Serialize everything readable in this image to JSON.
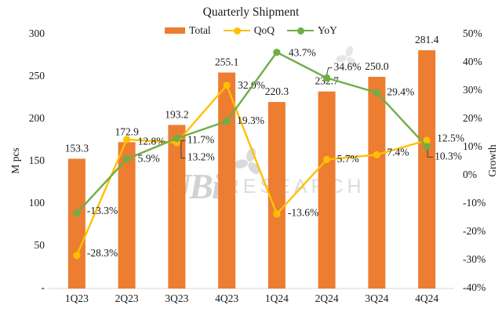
{
  "chart_data": {
    "type": "bar+line",
    "title": "Quarterly Shipment",
    "categories": [
      "1Q23",
      "2Q23",
      "3Q23",
      "4Q23",
      "1Q24",
      "2Q24",
      "3Q24",
      "4Q24"
    ],
    "series": [
      {
        "name": "Total",
        "type": "bar",
        "axis": "left",
        "color": "#ED7D31",
        "values": [
          153.3,
          172.9,
          193.2,
          255.1,
          220.3,
          232.7,
          250.0,
          281.4
        ]
      },
      {
        "name": "QoQ",
        "type": "line",
        "axis": "right",
        "color": "#FFC000",
        "values": [
          -28.3,
          12.8,
          11.7,
          32.0,
          -13.6,
          5.7,
          7.4,
          12.5
        ]
      },
      {
        "name": "YoY",
        "type": "line",
        "axis": "right",
        "color": "#70AD47",
        "values": [
          -13.3,
          5.9,
          13.2,
          19.3,
          43.7,
          34.6,
          29.4,
          10.3
        ]
      }
    ],
    "left_axis": {
      "title": "M pcs",
      "min": 0,
      "max": 300,
      "ticks": [
        "300",
        "250",
        "200",
        "150",
        "100",
        "50",
        "-"
      ]
    },
    "right_axis": {
      "title": "Growth",
      "min": -40,
      "max": 50,
      "ticks": [
        "50%",
        "40%",
        "30%",
        "20%",
        "10%",
        "0%",
        "-10%",
        "-20%",
        "-30%",
        "-40%"
      ]
    },
    "grid": false,
    "legend_position": "top",
    "bar_label_format": "0.0",
    "line_label_format": "0.0%"
  },
  "watermark": {
    "logo_text": "UBi",
    "text": "RESEARCH"
  }
}
